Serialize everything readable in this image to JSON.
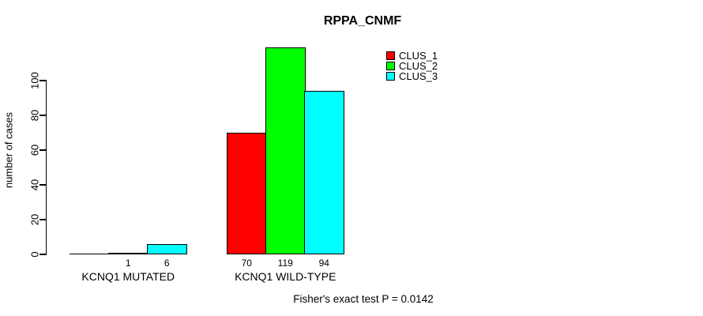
{
  "chart_data": {
    "type": "bar",
    "title": "RPPA_CNMF",
    "ylabel": "number of cases",
    "xlabel": "",
    "categories": [
      "KCNQ1 MUTATED",
      "KCNQ1 WILD-TYPE"
    ],
    "series": [
      {
        "name": "CLUS_1",
        "color": "#FF0000",
        "values": [
          0,
          70
        ],
        "bar_labels": [
          "",
          "70"
        ]
      },
      {
        "name": "CLUS_2",
        "color": "#00FF00",
        "values": [
          1,
          119
        ],
        "bar_labels": [
          "1",
          "119"
        ]
      },
      {
        "name": "CLUS_3",
        "color": "#00FFFF",
        "values": [
          6,
          94
        ],
        "bar_labels": [
          "6",
          "94"
        ]
      }
    ],
    "yticks": [
      0,
      20,
      40,
      60,
      80,
      100
    ],
    "ylim": [
      0,
      120
    ],
    "grid": false,
    "legend_position": "top-right",
    "legend_entries": [
      "CLUS_1",
      "CLUS_2",
      "CLUS_3"
    ],
    "annotation": "Fisher's exact test P = 0.0142",
    "axis_color": "#000000",
    "background_color": "#FFFFFF"
  }
}
